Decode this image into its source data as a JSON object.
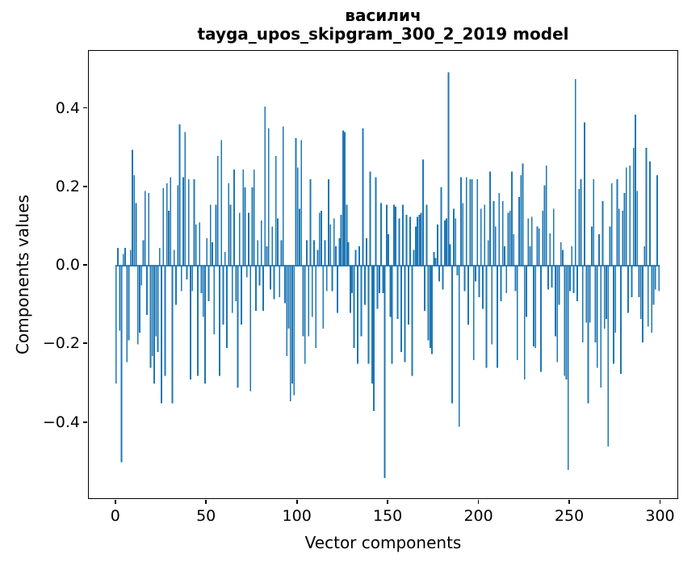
{
  "figure": {
    "background": "#ffffff",
    "title_line1": "василич",
    "title_line2": "tayga_upos_skipgram_300_2_2019 model"
  },
  "axes": {
    "xlabel": "Vector components",
    "ylabel": "Components values",
    "xtick_labels": [
      "0",
      "50",
      "100",
      "150",
      "200",
      "250",
      "300"
    ],
    "ytick_labels": [
      "0.4",
      "0.2",
      "0.0",
      "−0.2",
      "−0.4"
    ],
    "spine_color": "#000000"
  },
  "chart_data": {
    "type": "bar",
    "title": "василич\ntayga_upos_skipgram_300_2_2019 model",
    "xlabel": "Vector components",
    "ylabel": "Components values",
    "legend": null,
    "grid": false,
    "bar_color": "#1f77b4",
    "xlim": [
      -15,
      310
    ],
    "ylim": [
      -0.596,
      0.547
    ],
    "xticks": [
      0,
      50,
      100,
      150,
      200,
      250,
      300
    ],
    "yticks": [
      0.4,
      0.2,
      0.0,
      -0.2,
      -0.4
    ],
    "x_start": 0,
    "n_components": 300,
    "values": [
      -0.3,
      0.045,
      -0.165,
      -0.5,
      0.03,
      0.045,
      -0.245,
      -0.19,
      0.04,
      0.295,
      0.23,
      0.16,
      -0.2,
      -0.17,
      -0.05,
      0.065,
      0.19,
      -0.125,
      0.185,
      -0.26,
      -0.23,
      -0.3,
      -0.18,
      -0.22,
      0.045,
      -0.35,
      0.198,
      -0.28,
      0.21,
      0.14,
      0.225,
      -0.35,
      0.04,
      -0.1,
      0.205,
      0.36,
      -0.065,
      0.225,
      0.34,
      -0.035,
      0.22,
      -0.29,
      -0.065,
      0.22,
      0.105,
      -0.28,
      0.11,
      -0.07,
      -0.13,
      -0.3,
      0.07,
      -0.09,
      0.155,
      0.06,
      -0.175,
      0.155,
      0.28,
      -0.28,
      0.32,
      -0.15,
      0.035,
      -0.21,
      0.21,
      0.155,
      -0.12,
      0.245,
      -0.09,
      -0.31,
      0.135,
      -0.15,
      0.245,
      0.2,
      -0.03,
      0.135,
      -0.32,
      0.2,
      0.245,
      -0.115,
      0.065,
      -0.05,
      0.115,
      -0.115,
      0.405,
      0.05,
      0.35,
      -0.06,
      0.1,
      -0.085,
      0.28,
      0.12,
      -0.08,
      0.065,
      0.355,
      -0.095,
      -0.23,
      -0.16,
      -0.345,
      -0.3,
      -0.33,
      0.325,
      0.25,
      0.145,
      0.32,
      -0.18,
      -0.25,
      0.065,
      -0.18,
      0.22,
      -0.13,
      0.065,
      -0.21,
      0.04,
      0.135,
      0.14,
      -0.16,
      0.065,
      -0.065,
      0.22,
      0.105,
      -0.065,
      0.12,
      0.05,
      -0.12,
      0.07,
      0.13,
      0.345,
      0.34,
      0.155,
      0.06,
      -0.12,
      -0.07,
      -0.21,
      0.04,
      -0.25,
      0.05,
      -0.18,
      0.35,
      -0.1,
      0.07,
      -0.25,
      0.24,
      -0.3,
      -0.37,
      0.225,
      -0.11,
      -0.07,
      0.16,
      -0.07,
      -0.54,
      0.155,
      0.08,
      -0.13,
      -0.25,
      0.155,
      0.15,
      -0.135,
      0.12,
      -0.22,
      0.155,
      -0.245,
      0.13,
      -0.15,
      0.125,
      -0.28,
      0.04,
      0.1,
      0.125,
      0.13,
      0.135,
      0.27,
      -0.115,
      0.155,
      -0.19,
      -0.21,
      -0.225,
      0.035,
      0.02,
      0.105,
      -0.04,
      0.2,
      -0.06,
      0.115,
      0.12,
      0.493,
      0.055,
      -0.35,
      0.145,
      0.12,
      -0.025,
      -0.41,
      0.225,
      0.16,
      -0.065,
      0.225,
      -0.15,
      0.22,
      0.22,
      -0.24,
      -0.04,
      0.22,
      -0.08,
      0.145,
      -0.11,
      0.155,
      -0.26,
      0.065,
      0.24,
      -0.2,
      0.165,
      0.1,
      -0.26,
      0.185,
      -0.09,
      0.165,
      0.05,
      -0.07,
      0.135,
      0.14,
      0.24,
      0.08,
      -0.065,
      -0.24,
      0.175,
      0.23,
      0.26,
      -0.29,
      -0.13,
      0.12,
      0.05,
      0.125,
      -0.205,
      -0.21,
      0.1,
      0.095,
      -0.27,
      0.14,
      0.205,
      0.255,
      -0.06,
      0.082,
      -0.055,
      0.145,
      -0.18,
      -0.245,
      -0.1,
      0.06,
      0.04,
      -0.28,
      -0.29,
      -0.52,
      -0.065,
      0.05,
      -0.07,
      0.475,
      -0.09,
      0.195,
      0.22,
      -0.195,
      0.365,
      -0.145,
      -0.35,
      -0.145,
      0.1,
      0.22,
      -0.195,
      -0.26,
      0.08,
      -0.31,
      0.165,
      -0.16,
      -0.135,
      -0.46,
      0.1,
      0.21,
      -0.25,
      -0.17,
      0.22,
      0.145,
      -0.275,
      0.14,
      0.185,
      0.25,
      -0.12,
      0.255,
      -0.08,
      0.3,
      0.385,
      0.19,
      -0.08,
      -0.135,
      -0.195,
      0.05,
      0.3,
      -0.155,
      0.265,
      -0.17,
      -0.1,
      -0.06,
      0.23,
      -0.065
    ]
  }
}
